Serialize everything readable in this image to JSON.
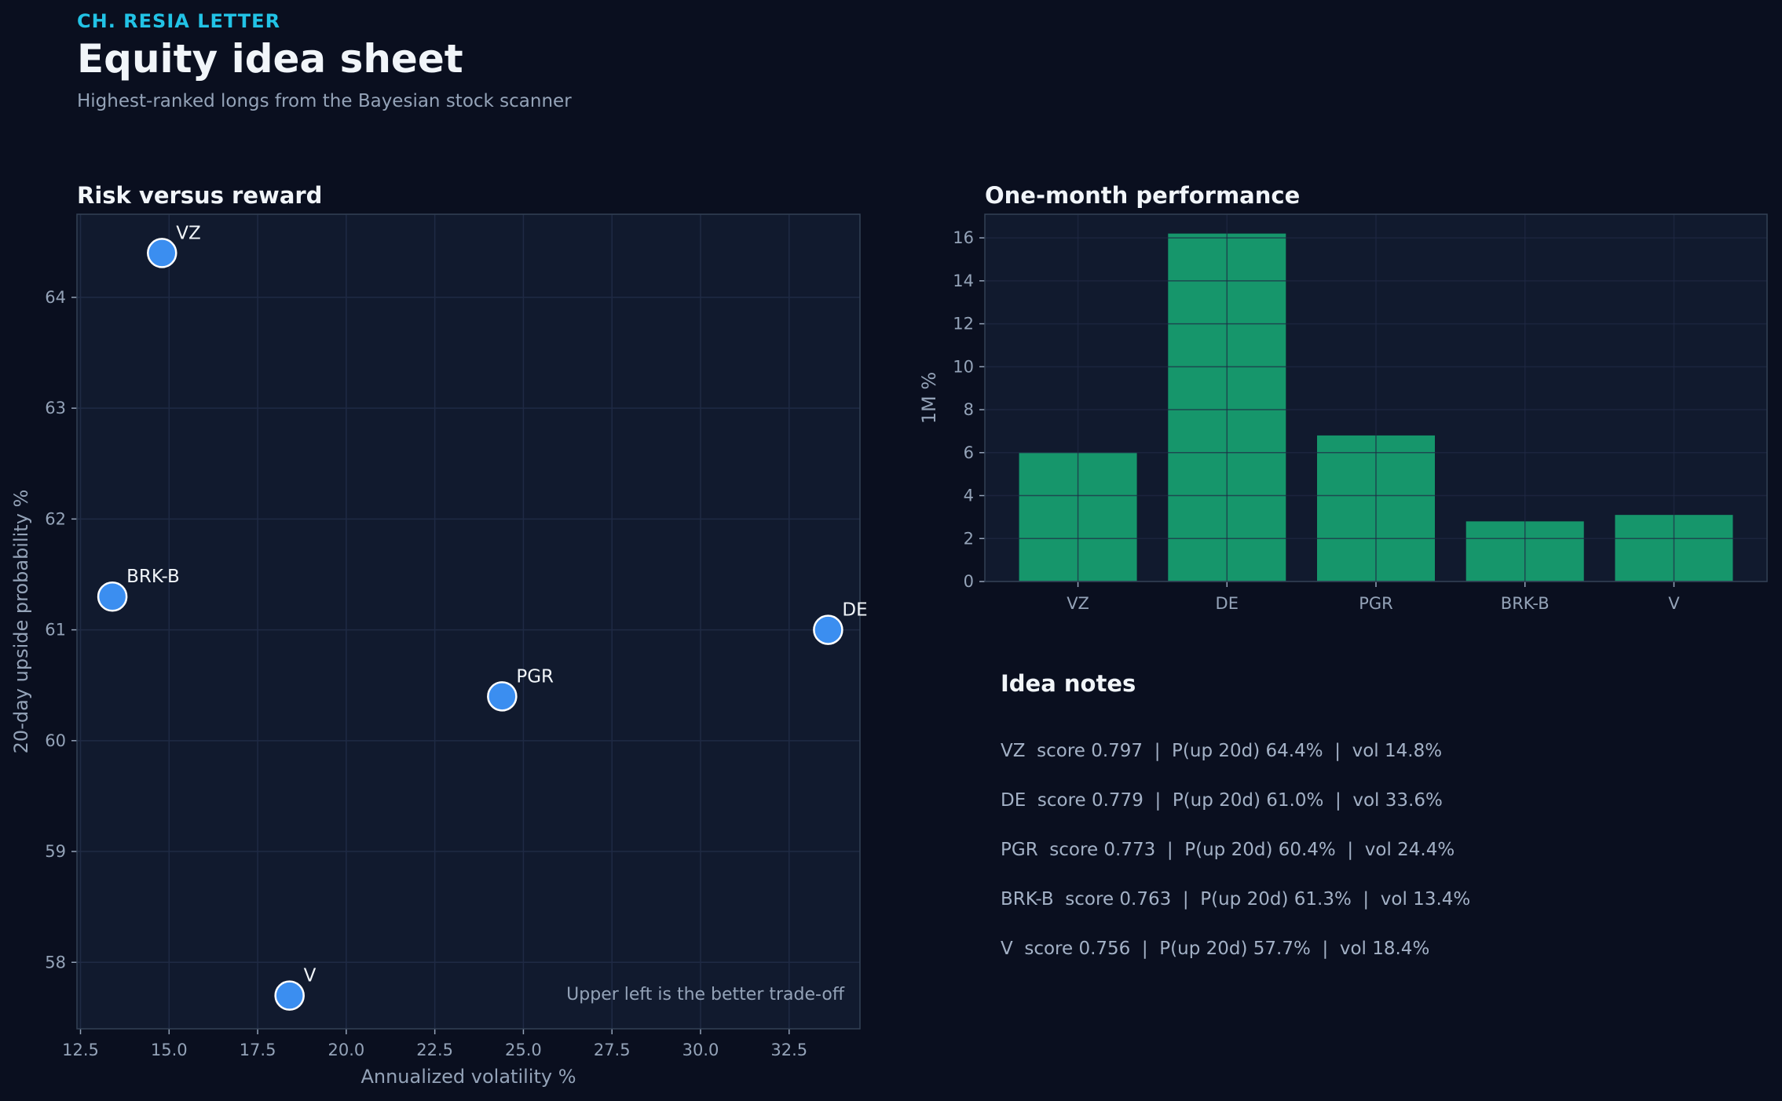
{
  "header": {
    "kicker": "CH. RESIA LETTER",
    "title": "Equity idea sheet",
    "subtitle": "Highest-ranked longs from the Bayesian stock scanner"
  },
  "colors": {
    "background": "#0a0f1f",
    "panel": "#111a2e",
    "accent": "#22c3e6",
    "point": "#3b8ef0",
    "bar": "#16966b"
  },
  "chart_data": [
    {
      "type": "scatter",
      "title": "Risk versus reward",
      "xlabel": "Annualized volatility %",
      "ylabel": "20-day upside probability %",
      "xlim": [
        12.4,
        34.5
      ],
      "ylim": [
        57.4,
        64.75
      ],
      "xticks": [
        "12.5",
        "15.0",
        "17.5",
        "20.0",
        "22.5",
        "25.0",
        "27.5",
        "30.0",
        "32.5"
      ],
      "yticks": [
        "58",
        "59",
        "60",
        "61",
        "62",
        "63",
        "64"
      ],
      "grid": true,
      "annotation": "Upper left is the better trade-off",
      "points": [
        {
          "label": "VZ",
          "x": 14.8,
          "y": 64.4
        },
        {
          "label": "BRK-B",
          "x": 13.4,
          "y": 61.3
        },
        {
          "label": "DE",
          "x": 33.6,
          "y": 61.0
        },
        {
          "label": "PGR",
          "x": 24.4,
          "y": 60.4
        },
        {
          "label": "V",
          "x": 18.4,
          "y": 57.7
        }
      ]
    },
    {
      "type": "bar",
      "title": "One-month performance",
      "ylabel": "1M %",
      "categories": [
        "VZ",
        "DE",
        "PGR",
        "BRK-B",
        "V"
      ],
      "values": [
        6.0,
        16.2,
        6.8,
        2.8,
        3.1
      ],
      "ylim": [
        0,
        17.1
      ],
      "yticks": [
        "0",
        "2",
        "4",
        "6",
        "8",
        "10",
        "12",
        "14",
        "16"
      ],
      "grid": true
    }
  ],
  "notes": {
    "title": "Idea notes",
    "items": [
      "VZ  score 0.797  |  P(up 20d) 64.4%  |  vol 14.8%",
      "DE  score 0.779  |  P(up 20d) 61.0%  |  vol 33.6%",
      "PGR  score 0.773  |  P(up 20d) 60.4%  |  vol 24.4%",
      "BRK-B  score 0.763  |  P(up 20d) 61.3%  |  vol 13.4%",
      "V  score 0.756  |  P(up 20d) 57.7%  |  vol 18.4%"
    ]
  }
}
